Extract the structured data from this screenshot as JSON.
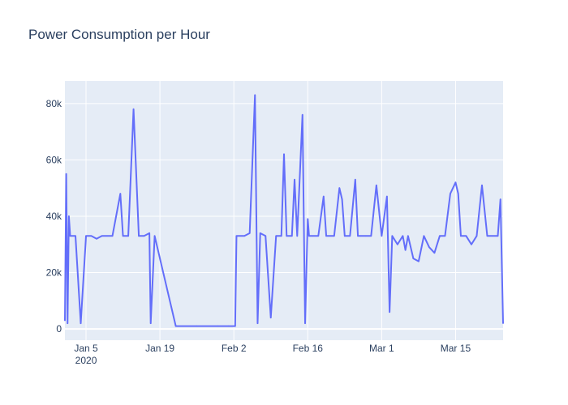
{
  "chart_data": {
    "type": "line",
    "title": "Power Consumption per Hour",
    "xlabel": "",
    "ylabel": "",
    "x_range": [
      "2020-01-01",
      "2020-03-24"
    ],
    "ylim": [
      -4000,
      88000
    ],
    "grid": true,
    "legend": "none",
    "x_ticks": [
      {
        "date": "2020-01-05",
        "label": "Jan 5",
        "sublabel": "2020"
      },
      {
        "date": "2020-01-19",
        "label": "Jan 19"
      },
      {
        "date": "2020-02-02",
        "label": "Feb 2"
      },
      {
        "date": "2020-02-16",
        "label": "Feb 16"
      },
      {
        "date": "2020-03-01",
        "label": "Mar 1"
      },
      {
        "date": "2020-03-15",
        "label": "Mar 15"
      }
    ],
    "y_ticks": [
      {
        "value": 0,
        "label": "0"
      },
      {
        "value": 20000,
        "label": "20k"
      },
      {
        "value": 40000,
        "label": "40k"
      },
      {
        "value": 60000,
        "label": "60k"
      },
      {
        "value": 80000,
        "label": "80k"
      }
    ],
    "series": [
      {
        "color": "#636efa",
        "x": [
          "2020-01-01",
          "2020-01-01 06:00",
          "2020-01-01 12:00",
          "2020-01-01 18:00",
          "2020-01-02",
          "2020-01-03",
          "2020-01-04",
          "2020-01-05",
          "2020-01-06",
          "2020-01-07",
          "2020-01-08",
          "2020-01-09",
          "2020-01-10",
          "2020-01-11 12:00",
          "2020-01-12",
          "2020-01-13",
          "2020-01-14",
          "2020-01-15",
          "2020-01-16",
          "2020-01-17",
          "2020-01-17 06:00",
          "2020-01-18",
          "2020-01-22",
          "2020-01-26",
          "2020-01-30",
          "2020-02-01",
          "2020-02-02 06:00",
          "2020-02-02 12:00",
          "2020-02-03",
          "2020-02-04",
          "2020-02-05",
          "2020-02-06",
          "2020-02-06 12:00",
          "2020-02-07",
          "2020-02-08",
          "2020-02-09",
          "2020-02-10",
          "2020-02-11",
          "2020-02-11 12:00",
          "2020-02-12",
          "2020-02-13",
          "2020-02-13 12:00",
          "2020-02-14",
          "2020-02-15",
          "2020-02-15 12:00",
          "2020-02-16",
          "2020-02-16 06:00",
          "2020-02-16 12:00",
          "2020-02-17",
          "2020-02-18",
          "2020-02-19",
          "2020-02-19 12:00",
          "2020-02-20",
          "2020-02-21",
          "2020-02-22",
          "2020-02-22 12:00",
          "2020-02-23",
          "2020-02-24",
          "2020-02-25",
          "2020-02-25 12:00",
          "2020-02-26",
          "2020-02-27",
          "2020-02-28",
          "2020-02-29",
          "2020-03-01",
          "2020-03-02",
          "2020-03-02 12:00",
          "2020-03-03",
          "2020-03-04",
          "2020-03-05",
          "2020-03-05 12:00",
          "2020-03-06",
          "2020-03-07",
          "2020-03-08",
          "2020-03-09",
          "2020-03-10",
          "2020-03-11",
          "2020-03-12",
          "2020-03-13",
          "2020-03-14",
          "2020-03-15",
          "2020-03-15 12:00",
          "2020-03-16",
          "2020-03-16 12:00",
          "2020-03-17",
          "2020-03-18",
          "2020-03-19",
          "2020-03-20",
          "2020-03-21",
          "2020-03-21 12:00",
          "2020-03-22",
          "2020-03-23",
          "2020-03-23 12:00",
          "2020-03-24"
        ],
        "y": [
          3000,
          55000,
          2000,
          40000,
          33000,
          33000,
          2000,
          33000,
          33000,
          32000,
          33000,
          33000,
          33000,
          48000,
          33000,
          33000,
          78000,
          33000,
          33000,
          34000,
          2000,
          33000,
          1000,
          1000,
          1000,
          1000,
          1000,
          33000,
          33000,
          33000,
          34000,
          83000,
          2000,
          34000,
          33000,
          4000,
          33000,
          33000,
          62000,
          33000,
          33000,
          53000,
          33000,
          76000,
          2000,
          39000,
          33000,
          33000,
          33000,
          33000,
          47000,
          33000,
          33000,
          33000,
          50000,
          46000,
          33000,
          33000,
          53000,
          33000,
          33000,
          33000,
          33000,
          51000,
          33000,
          47000,
          6000,
          33000,
          30000,
          33000,
          28000,
          33000,
          25000,
          24000,
          33000,
          29000,
          27000,
          33000,
          33000,
          48000,
          52000,
          48000,
          33000,
          33000,
          33000,
          30000,
          33000,
          51000,
          33000,
          33000,
          33000,
          33000,
          46000,
          2000
        ]
      }
    ]
  }
}
